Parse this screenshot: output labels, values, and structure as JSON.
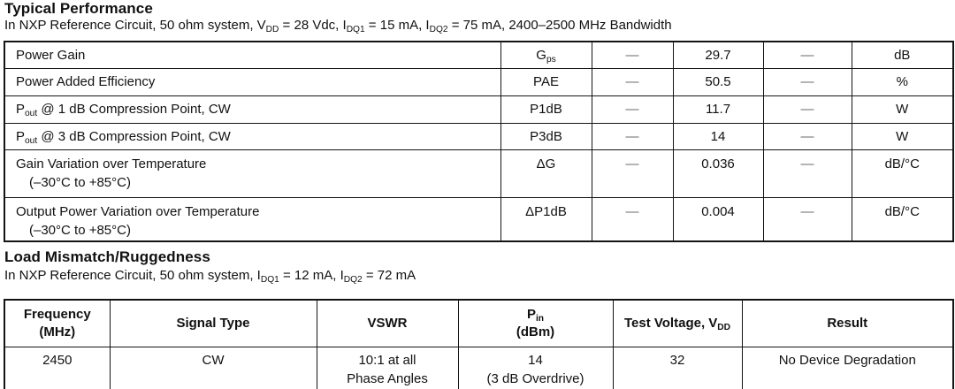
{
  "colors": {
    "background": "#ffffff",
    "text": "#111111",
    "border": "#141414",
    "dash": "#6a6a6a"
  },
  "typical_performance": {
    "title": "Typical Performance",
    "conditions": [
      {
        "t": "In NXP Reference Circuit, 50 ohm system, V"
      },
      {
        "t": "DD",
        "sub": true
      },
      {
        "t": " = 28 Vdc, I"
      },
      {
        "t": "DQ1",
        "sub": true
      },
      {
        "t": " = 15 mA, I"
      },
      {
        "t": "DQ2",
        "sub": true
      },
      {
        "t": " = 75 mA, 2400–2500 MHz Bandwidth"
      }
    ],
    "rows": [
      {
        "characteristic": [
          {
            "t": "Power Gain"
          }
        ],
        "symbol": [
          {
            "t": "G"
          },
          {
            "t": "ps",
            "sub": true
          }
        ],
        "min": "—",
        "typ": "29.7",
        "max": "—",
        "unit": "dB"
      },
      {
        "characteristic": [
          {
            "t": "Power Added Efficiency"
          }
        ],
        "symbol": [
          {
            "t": "PAE"
          }
        ],
        "min": "—",
        "typ": "50.5",
        "max": "—",
        "unit": "%"
      },
      {
        "characteristic": [
          {
            "t": "P"
          },
          {
            "t": "out",
            "sub": true
          },
          {
            "t": " @ 1 dB Compression Point, CW"
          }
        ],
        "symbol": [
          {
            "t": "P1dB"
          }
        ],
        "min": "—",
        "typ": "11.7",
        "max": "—",
        "unit": "W"
      },
      {
        "characteristic": [
          {
            "t": "P"
          },
          {
            "t": "out",
            "sub": true
          },
          {
            "t": " @ 3 dB Compression Point, CW"
          }
        ],
        "symbol": [
          {
            "t": "P3dB"
          }
        ],
        "min": "—",
        "typ": "14",
        "max": "—",
        "unit": "W"
      },
      {
        "characteristic": [
          {
            "t": "Gain Variation over Temperature"
          },
          {
            "br": true
          },
          {
            "t": "(–30°C to +85°C)",
            "ind": true
          }
        ],
        "symbol": [
          {
            "t": "ΔG"
          }
        ],
        "min": "—",
        "typ": "0.036",
        "max": "—",
        "unit": "dB/°C"
      },
      {
        "characteristic": [
          {
            "t": "Output Power Variation over Temperature"
          },
          {
            "br": true
          },
          {
            "t": "(–30°C to +85°C)",
            "ind": true
          }
        ],
        "symbol": [
          {
            "t": "ΔP1dB"
          }
        ],
        "min": "—",
        "typ": "0.004",
        "max": "—",
        "unit": "dB/°C"
      }
    ]
  },
  "load_mismatch": {
    "title": "Load Mismatch/Ruggedness",
    "conditions": [
      {
        "t": "In NXP Reference Circuit, 50 ohm system, I"
      },
      {
        "t": "DQ1",
        "sub": true
      },
      {
        "t": " = 12 mA, I"
      },
      {
        "t": "DQ2",
        "sub": true
      },
      {
        "t": " = 72 mA"
      }
    ],
    "headers": {
      "frequency": [
        {
          "t": "Frequency"
        },
        {
          "br": true
        },
        {
          "t": "(MHz)"
        }
      ],
      "signal_type": [
        {
          "t": "Signal Type"
        }
      ],
      "vswr": [
        {
          "t": "VSWR"
        }
      ],
      "pin": [
        {
          "t": "P"
        },
        {
          "t": "in",
          "sub": true
        },
        {
          "br": true
        },
        {
          "t": "(dBm)"
        }
      ],
      "test_voltage": [
        {
          "t": "Test Voltage, V"
        },
        {
          "t": "DD",
          "sub": true
        }
      ],
      "result": [
        {
          "t": "Result"
        }
      ]
    },
    "row": {
      "frequency": "2450",
      "signal_type": "CW",
      "vswr": [
        {
          "t": "10:1 at all"
        },
        {
          "br": true
        },
        {
          "t": "Phase Angles"
        }
      ],
      "pin": [
        {
          "t": "14"
        },
        {
          "br": true
        },
        {
          "t": "(3 dB Overdrive)"
        }
      ],
      "test_voltage": "32",
      "result": "No Device Degradation"
    }
  }
}
